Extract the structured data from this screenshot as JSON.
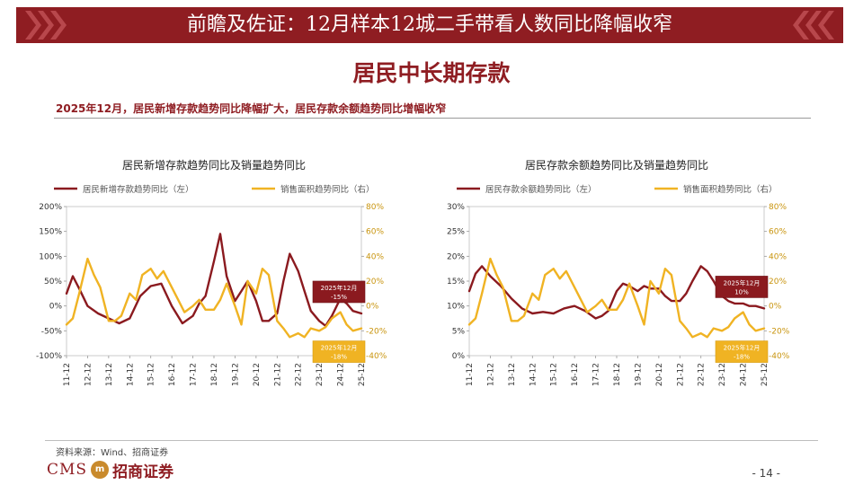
{
  "header": {
    "title": "前瞻及佐证：12月样本12城二手带看人数同比降幅收窄",
    "section_title": "居民中长期存款",
    "subtitle": "2025年12月，居民新增存款趋势同比降幅扩大，居民存款余额趋势同比增幅收窄"
  },
  "colors": {
    "brand": "#8f1d22",
    "series_red": "#8b1a1f",
    "series_gold": "#f0b323"
  },
  "footer": {
    "source": "资料来源：Wind、招商证券",
    "logo_cms": "CMS",
    "logo_mark": "m",
    "logo_cn": "招商证券",
    "page_number": "- 14 -"
  },
  "chart_data": [
    {
      "type": "line",
      "title": "居民新增存款趋势同比及销量趋势同比",
      "x_ticks": [
        "11-12",
        "12-12",
        "13-12",
        "14-12",
        "15-12",
        "16-12",
        "17-12",
        "18-12",
        "19-12",
        "20-12",
        "21-12",
        "22-12",
        "23-12",
        "24-12",
        "25-12"
      ],
      "y_left": {
        "lim": [
          -100,
          200
        ],
        "ticks": [
          "200%",
          "150%",
          "100%",
          "50%",
          "0%",
          "-50%",
          "-100%"
        ]
      },
      "y_right": {
        "lim": [
          -40,
          80
        ],
        "ticks": [
          "80%",
          "60%",
          "40%",
          "20%",
          "0%",
          "-20%",
          "-40%"
        ]
      },
      "series": [
        {
          "name": "居民新增存款趋势同比（左）",
          "axis": "left",
          "color": "#8b1a1f",
          "x": [
            11.0,
            11.3,
            11.6,
            12.0,
            12.5,
            13.0,
            13.5,
            14.0,
            14.5,
            15.0,
            15.5,
            16.0,
            16.5,
            17.0,
            17.3,
            17.6,
            18.0,
            18.3,
            18.6,
            19.0,
            19.3,
            19.6,
            20.0,
            20.3,
            20.6,
            21.0,
            21.3,
            21.6,
            22.0,
            22.3,
            22.6,
            23.0,
            23.3,
            23.6,
            24.0,
            24.3,
            24.6,
            25.0
          ],
          "y": [
            25,
            60,
            35,
            0,
            -15,
            -25,
            -35,
            -25,
            20,
            40,
            45,
            0,
            -35,
            -20,
            5,
            20,
            90,
            145,
            60,
            10,
            30,
            50,
            10,
            -30,
            -30,
            -15,
            50,
            105,
            70,
            30,
            -10,
            -30,
            -40,
            -20,
            15,
            5,
            -10,
            -15
          ]
        },
        {
          "name": "销售面积趋势同比（右）",
          "axis": "right",
          "color": "#f0b323",
          "x": [
            11.0,
            11.3,
            11.6,
            12.0,
            12.3,
            12.6,
            13.0,
            13.3,
            13.6,
            14.0,
            14.3,
            14.6,
            15.0,
            15.3,
            15.6,
            16.0,
            16.3,
            16.6,
            17.0,
            17.3,
            17.6,
            18.0,
            18.3,
            18.6,
            19.0,
            19.3,
            19.6,
            20.0,
            20.3,
            20.6,
            21.0,
            21.3,
            21.6,
            22.0,
            22.3,
            22.6,
            23.0,
            23.3,
            23.6,
            24.0,
            24.3,
            24.6,
            25.0
          ],
          "y": [
            -15,
            -10,
            10,
            38,
            25,
            15,
            -12,
            -12,
            -8,
            10,
            5,
            25,
            30,
            22,
            28,
            15,
            5,
            -5,
            0,
            5,
            -3,
            -3,
            5,
            18,
            0,
            -15,
            20,
            10,
            30,
            25,
            -12,
            -18,
            -25,
            -22,
            -25,
            -18,
            -20,
            -17,
            -10,
            -5,
            -15,
            -20,
            -18
          ]
        }
      ],
      "annotations": [
        {
          "line1": "2025年12月",
          "line2": "-15%",
          "style": "red"
        },
        {
          "line1": "2025年12月",
          "line2": "-18%",
          "style": "gold"
        }
      ]
    },
    {
      "type": "line",
      "title": "居民存款余额趋势同比及销量趋势同比",
      "x_ticks": [
        "11-12",
        "12-12",
        "13-12",
        "14-12",
        "15-12",
        "16-12",
        "17-12",
        "18-12",
        "19-12",
        "20-12",
        "21-12",
        "22-12",
        "23-12",
        "24-12",
        "25-12"
      ],
      "y_left": {
        "lim": [
          0,
          30
        ],
        "ticks": [
          "30%",
          "25%",
          "20%",
          "15%",
          "10%",
          "5%",
          "0%"
        ]
      },
      "y_right": {
        "lim": [
          -40,
          80
        ],
        "ticks": [
          "80%",
          "60%",
          "40%",
          "20%",
          "0%",
          "-20%",
          "-40%"
        ]
      },
      "series": [
        {
          "name": "居民存款余额趋势同比（左）",
          "axis": "left",
          "color": "#8b1a1f",
          "x": [
            11.0,
            11.3,
            11.6,
            12.0,
            12.5,
            13.0,
            13.5,
            14.0,
            14.5,
            15.0,
            15.5,
            16.0,
            16.5,
            17.0,
            17.3,
            17.6,
            18.0,
            18.3,
            18.6,
            19.0,
            19.3,
            19.6,
            20.0,
            20.3,
            20.6,
            21.0,
            21.3,
            21.6,
            22.0,
            22.3,
            22.6,
            23.0,
            23.3,
            23.6,
            24.0,
            24.3,
            24.6,
            25.0
          ],
          "y": [
            13,
            16.5,
            18,
            16,
            14,
            11.5,
            9.5,
            8.5,
            8.8,
            8.5,
            9.5,
            10,
            9,
            7.5,
            8,
            9,
            13,
            14.5,
            14,
            13,
            14,
            13.5,
            13.5,
            12,
            11,
            11,
            12.5,
            15,
            18,
            17,
            15,
            12,
            11,
            10.5,
            10.5,
            10,
            10,
            9.5
          ]
        },
        {
          "name": "销售面积趋势同比（右）",
          "axis": "right",
          "color": "#f0b323",
          "x": [
            11.0,
            11.3,
            11.6,
            12.0,
            12.3,
            12.6,
            13.0,
            13.3,
            13.6,
            14.0,
            14.3,
            14.6,
            15.0,
            15.3,
            15.6,
            16.0,
            16.3,
            16.6,
            17.0,
            17.3,
            17.6,
            18.0,
            18.3,
            18.6,
            19.0,
            19.3,
            19.6,
            20.0,
            20.3,
            20.6,
            21.0,
            21.3,
            21.6,
            22.0,
            22.3,
            22.6,
            23.0,
            23.3,
            23.6,
            24.0,
            24.3,
            24.6,
            25.0
          ],
          "y": [
            -15,
            -10,
            10,
            38,
            25,
            15,
            -12,
            -12,
            -8,
            10,
            5,
            25,
            30,
            22,
            28,
            15,
            5,
            -5,
            0,
            5,
            -3,
            -3,
            5,
            18,
            0,
            -15,
            20,
            10,
            30,
            25,
            -12,
            -18,
            -25,
            -22,
            -25,
            -18,
            -20,
            -17,
            -10,
            -5,
            -15,
            -20,
            -18
          ]
        }
      ],
      "annotations": [
        {
          "line1": "2025年12月",
          "line2": "10%",
          "style": "red"
        },
        {
          "line1": "2025年12月",
          "line2": "-18%",
          "style": "gold"
        }
      ]
    }
  ]
}
